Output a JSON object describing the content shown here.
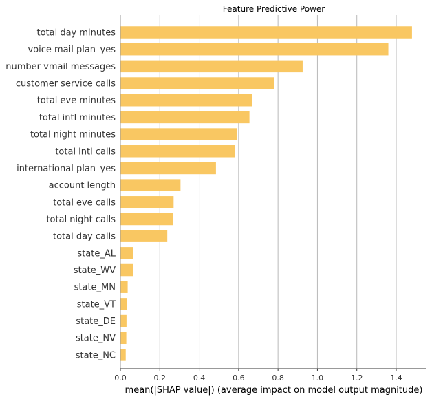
{
  "chart_data": {
    "type": "bar",
    "orientation": "horizontal",
    "title": "Feature Predictive Power",
    "xlabel": "mean(|SHAP value|) (average impact on model output magnitude)",
    "ylabel": "",
    "xlim": [
      0,
      1.55
    ],
    "xticks": [
      0.0,
      0.2,
      0.4,
      0.6,
      0.8,
      1.0,
      1.2,
      1.4
    ],
    "xtick_labels": [
      "0.0",
      "0.2",
      "0.4",
      "0.6",
      "0.8",
      "1.0",
      "1.2",
      "1.4"
    ],
    "grid": "vertical",
    "bar_color": "#f9c762",
    "categories": [
      "total day minutes",
      "voice mail plan_yes",
      "number vmail messages",
      "customer service calls",
      "total eve minutes",
      "total intl minutes",
      "total night minutes",
      "total intl calls",
      "international plan_yes",
      "account length",
      "total eve calls",
      "total night calls",
      "total day calls",
      "state_AL",
      "state_WV",
      "state_MN",
      "state_VT",
      "state_DE",
      "state_NV",
      "state_NC"
    ],
    "values": [
      1.48,
      1.36,
      0.925,
      0.78,
      0.67,
      0.655,
      0.59,
      0.58,
      0.485,
      0.305,
      0.27,
      0.268,
      0.238,
      0.066,
      0.066,
      0.037,
      0.032,
      0.031,
      0.03,
      0.027
    ]
  }
}
